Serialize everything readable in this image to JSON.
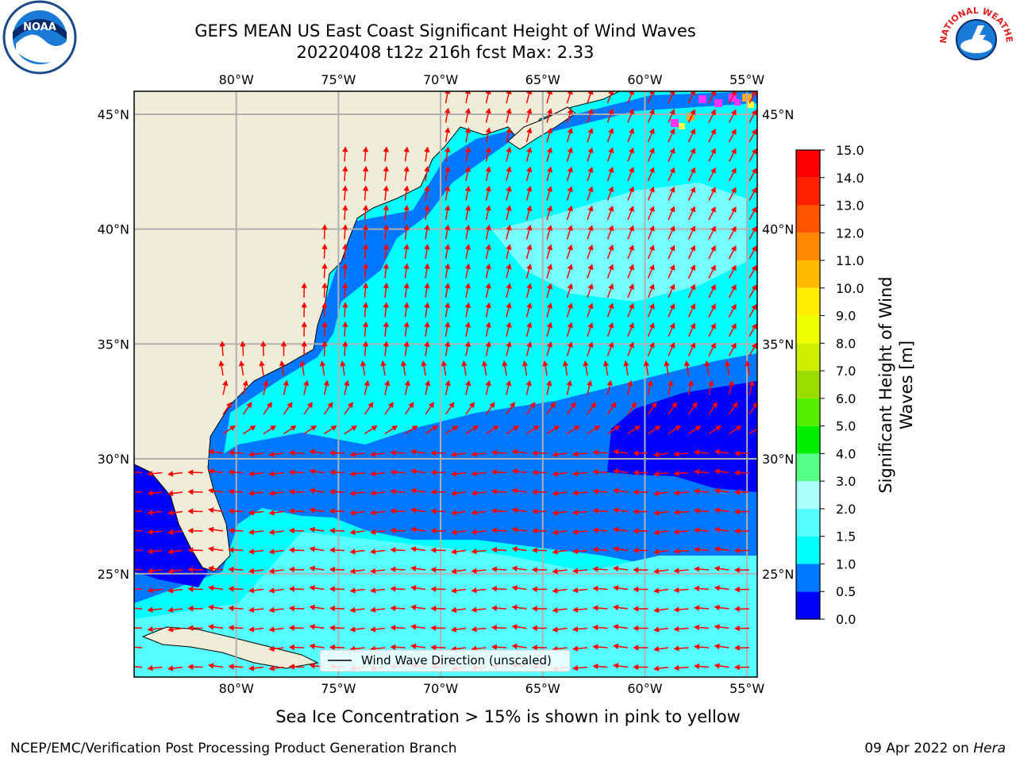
{
  "header": {
    "title_line1": "GEFS MEAN US East Coast Significant Height of Wind Waves",
    "title_line2": "20220408 t12z 216h fcst   Max: 2.33"
  },
  "logos": {
    "left": {
      "icon": "noaa-logo-icon",
      "text": "NOAA"
    },
    "right": {
      "icon": "national-weather-service-logo-icon",
      "text": "NATIONAL WEATHER SERVICE"
    }
  },
  "map": {
    "lon_labels": [
      "80°W",
      "75°W",
      "70°W",
      "65°W",
      "60°W",
      "55°W"
    ],
    "lat_labels": [
      "45°N",
      "40°N",
      "35°N",
      "30°N",
      "25°N"
    ],
    "lon_values": [
      -80,
      -75,
      -70,
      -65,
      -60,
      -55
    ],
    "lat_values": [
      45,
      40,
      35,
      30,
      25
    ],
    "lon_range": [
      -85,
      -54.5
    ],
    "lat_range": [
      20.5,
      46
    ],
    "legend_label": "Wind Wave Direction (unscaled)",
    "colors": {
      "land": "#efedd8",
      "arrow": "#ff0000",
      "grid": "#b0b0b0",
      "ice": [
        "#ff33ff",
        "#ffaa22",
        "#ffff44"
      ]
    }
  },
  "colorbar": {
    "label": "Significant Height of Wind Waves [m]",
    "label_line1": "Significant Height of Wind",
    "label_line2": "Waves [m]",
    "ticks": [
      "0.0",
      "0.5",
      "1.0",
      "1.5",
      "2.0",
      "3.0",
      "4.0",
      "5.0",
      "6.0",
      "7.0",
      "8.0",
      "9.0",
      "10.0",
      "11.0",
      "12.0",
      "13.0",
      "14.0",
      "15.0"
    ],
    "colors": [
      "#0000ff",
      "#0077ff",
      "#00ffff",
      "#55ffff",
      "#aaffff",
      "#55ff88",
      "#00ee00",
      "#55ee00",
      "#99dd00",
      "#ccee00",
      "#eeff00",
      "#ffee00",
      "#ffbb00",
      "#ff8800",
      "#ff5500",
      "#ff2200",
      "#ff0000"
    ]
  },
  "subtitle": "Sea Ice Concentration > 15% is shown in pink to yellow",
  "footer": {
    "left": "NCEP/EMC/Verification Post Processing Product Generation Branch",
    "right_date": "09 Apr 2022 on ",
    "right_host": "Hera"
  }
}
